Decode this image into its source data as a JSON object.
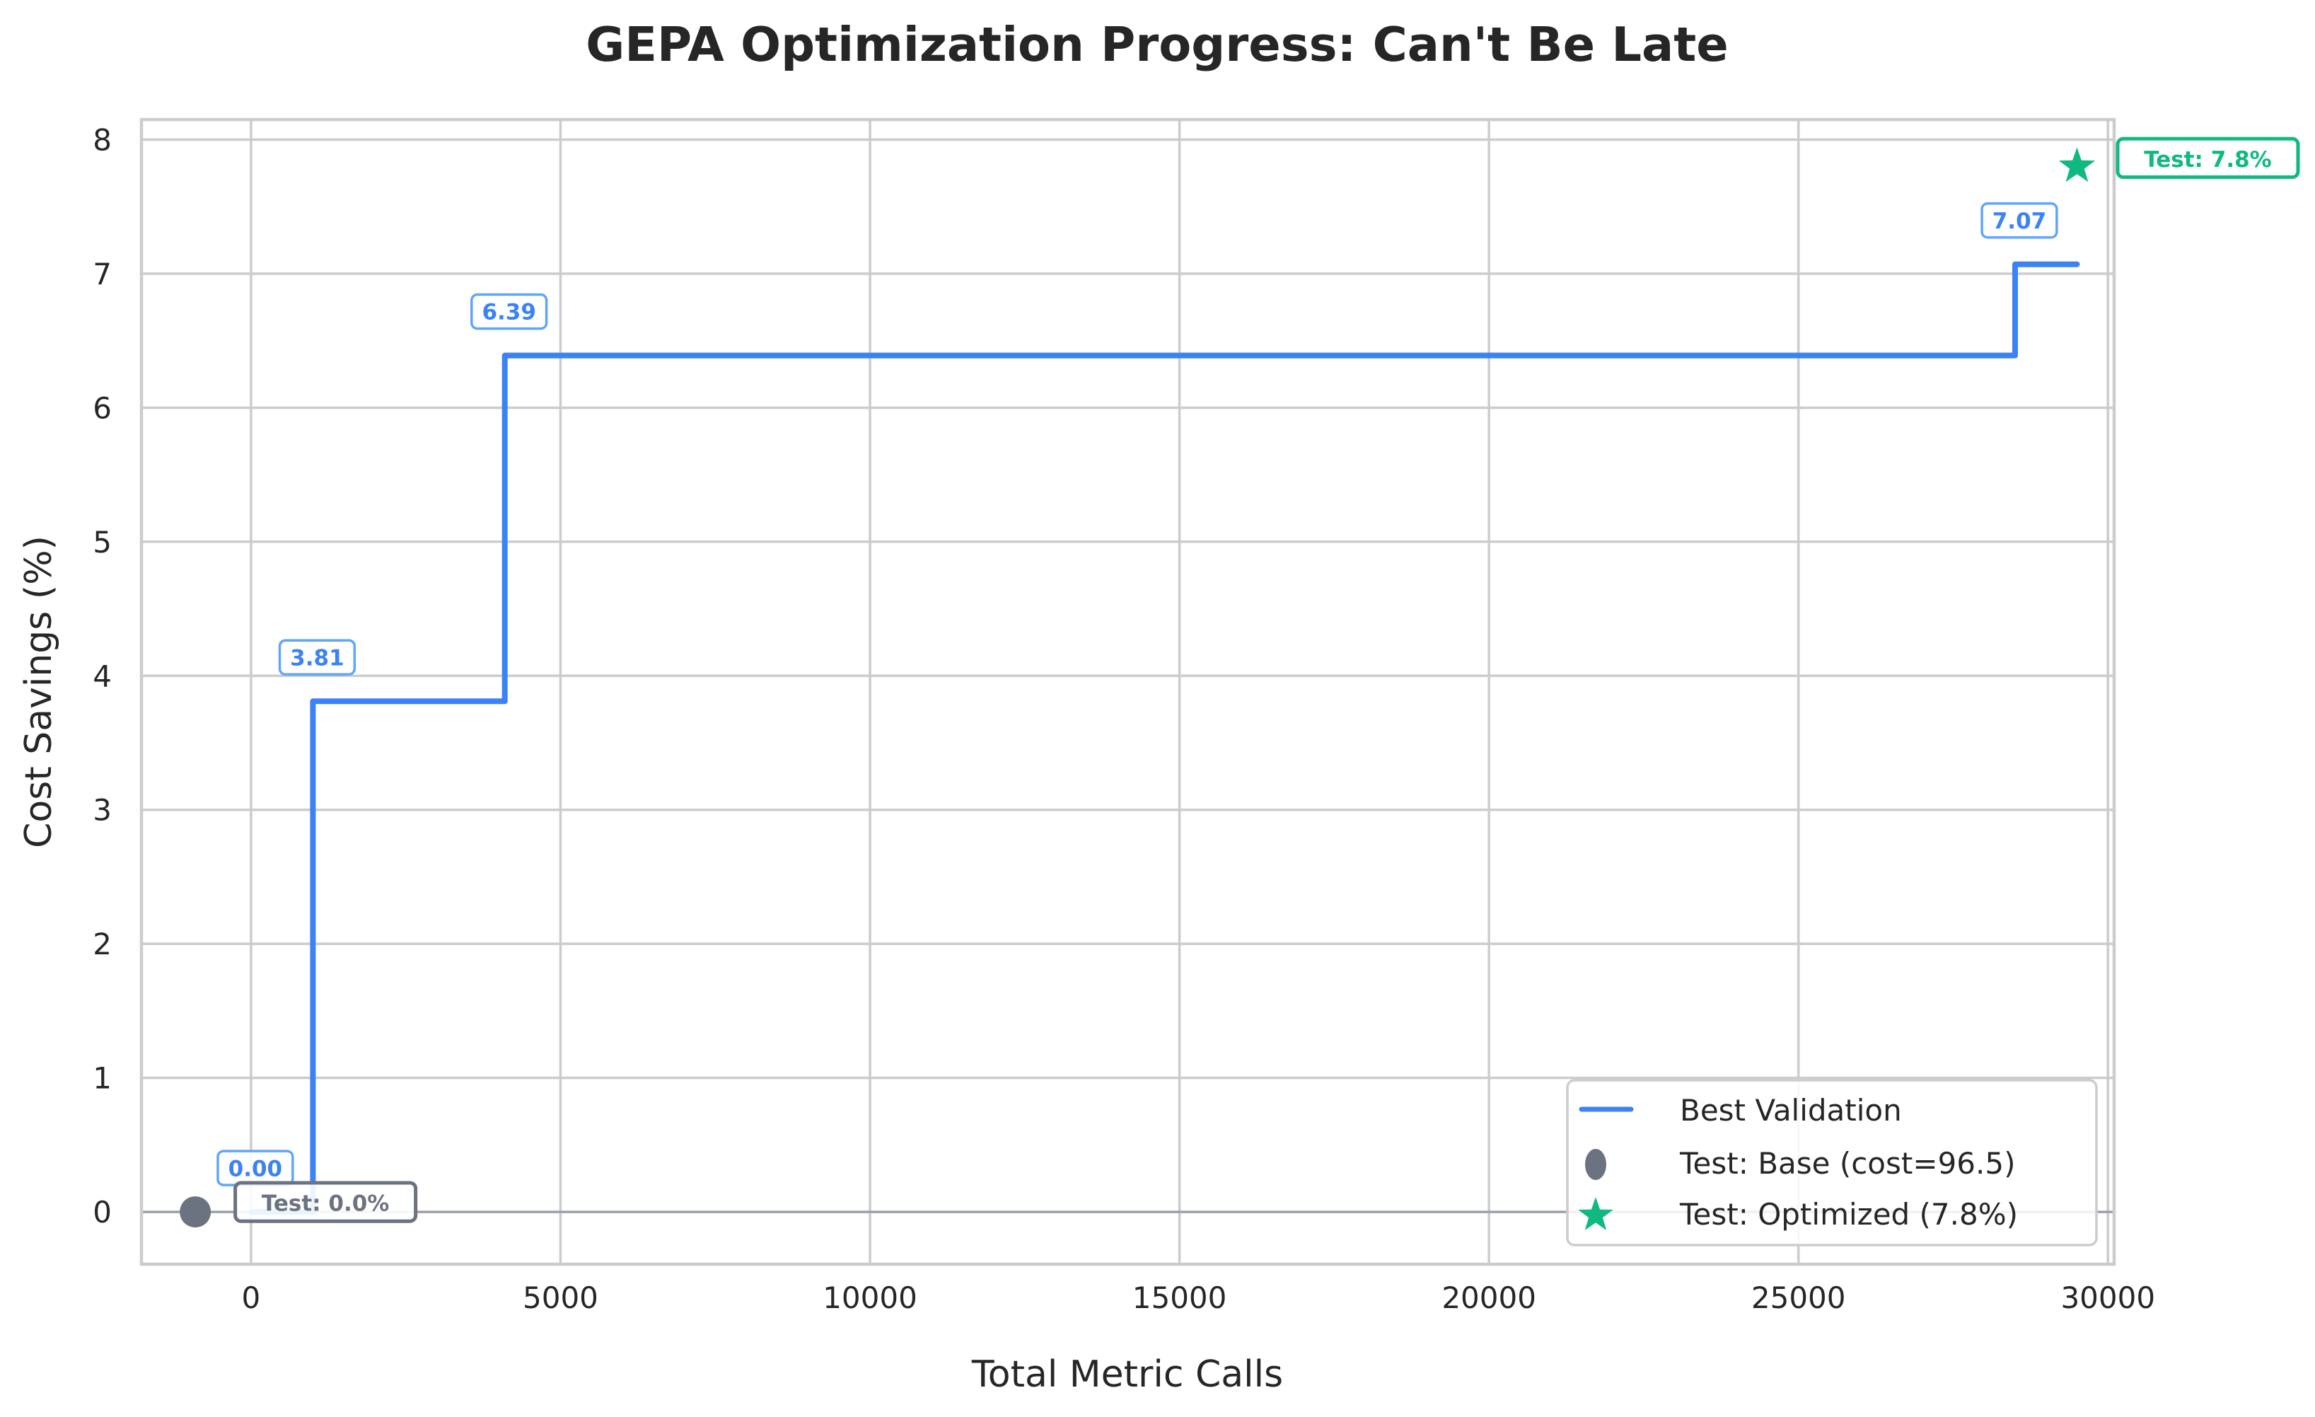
{
  "chart_data": {
    "type": "line",
    "title": "GEPA Optimization Progress: Can't Be Late",
    "xlabel": "Total Metric Calls",
    "ylabel": "Cost Savings (%)",
    "xlim": [
      -1770,
      30100
    ],
    "ylim": [
      -0.39,
      8.15
    ],
    "x_ticks": [
      0,
      5000,
      10000,
      15000,
      20000,
      25000,
      30000
    ],
    "x_tick_labels": [
      "0",
      "5000",
      "10000",
      "15000",
      "20000",
      "25000",
      "30000"
    ],
    "y_ticks": [
      0,
      1,
      2,
      3,
      4,
      5,
      6,
      7,
      8
    ],
    "y_tick_labels": [
      "0",
      "1",
      "2",
      "3",
      "4",
      "5",
      "6",
      "7",
      "8"
    ],
    "grid": true,
    "legend_position": "lower right",
    "series": [
      {
        "name": "Best Validation",
        "type": "step",
        "color": "#3b82f6",
        "x": [
          0,
          1000,
          1000,
          4100,
          4100,
          28500,
          28500,
          29500
        ],
        "y": [
          0.0,
          0.0,
          3.81,
          3.81,
          6.39,
          6.39,
          7.07,
          7.07
        ],
        "annotations": [
          {
            "x": 0,
            "y": 0.0,
            "label": "0.00"
          },
          {
            "x": 1000,
            "y": 3.81,
            "label": "3.81"
          },
          {
            "x": 4100,
            "y": 6.39,
            "label": "6.39"
          },
          {
            "x": 28500,
            "y": 7.07,
            "label": "7.07"
          }
        ]
      },
      {
        "name": "Test: Base (cost=96.5)",
        "type": "scatter",
        "marker": "circle",
        "color": "#6b7280",
        "x": [
          -900
        ],
        "y": [
          0.0
        ],
        "annotation": "Test: 0.0%"
      },
      {
        "name": "Test: Optimized (7.8%)",
        "type": "scatter",
        "marker": "star",
        "color": "#10b981",
        "x": [
          29500
        ],
        "y": [
          7.8
        ],
        "annotation": "Test: 7.8%"
      }
    ],
    "reference_lines": [
      {
        "type": "horizontal",
        "y": 0,
        "color": "#9ca3af"
      }
    ]
  },
  "legend": {
    "items": [
      {
        "label": "Best Validation"
      },
      {
        "label": "Test: Base (cost=96.5)"
      },
      {
        "label": "Test: Optimized (7.8%)"
      }
    ]
  }
}
